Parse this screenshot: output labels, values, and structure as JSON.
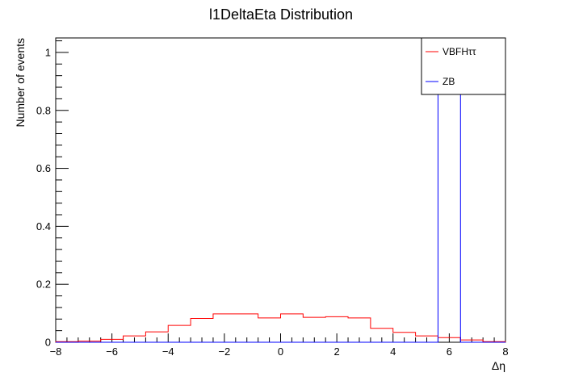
{
  "chart_data": {
    "type": "histogram",
    "title": "l1DeltaEta Distribution",
    "xlabel": "Δη",
    "ylabel": "Number of events",
    "xlim": [
      -8,
      8
    ],
    "ylim": [
      0,
      1.05
    ],
    "xticks": [
      -8,
      -6,
      -4,
      -2,
      0,
      2,
      4,
      6,
      8
    ],
    "yticks": [
      0,
      0.2,
      0.4,
      0.6,
      0.8,
      1
    ],
    "x_tick_labels": [
      "−8",
      "−6",
      "−4",
      "−2",
      "0",
      "2",
      "4",
      "6",
      "8"
    ],
    "y_tick_labels": [
      "0",
      "0.2",
      "0.4",
      "0.6",
      "0.8",
      "1"
    ],
    "bin_edges": [
      -8,
      -7.2,
      -6.4,
      -5.6,
      -4.8,
      -4,
      -3.2,
      -2.4,
      -1.6,
      -0.8,
      0,
      0.8,
      1.6,
      2.4,
      3.2,
      4,
      4.8,
      5.6,
      6.4,
      7.2,
      8
    ],
    "series": [
      {
        "name": "VBFHττ",
        "color": "#ff0000",
        "values": [
          0.002,
          0.004,
          0.01,
          0.022,
          0.036,
          0.058,
          0.082,
          0.098,
          0.098,
          0.084,
          0.098,
          0.086,
          0.088,
          0.084,
          0.048,
          0.034,
          0.022,
          0.016,
          0.008,
          0.002
        ]
      },
      {
        "name": "ZB",
        "color": "#0000ff",
        "values": [
          0,
          0,
          0,
          0,
          0,
          0,
          0,
          0,
          0,
          0,
          0,
          0,
          0,
          0,
          0,
          0,
          0,
          1,
          0,
          0
        ]
      }
    ],
    "legend_position": "top-right",
    "grid": false
  }
}
